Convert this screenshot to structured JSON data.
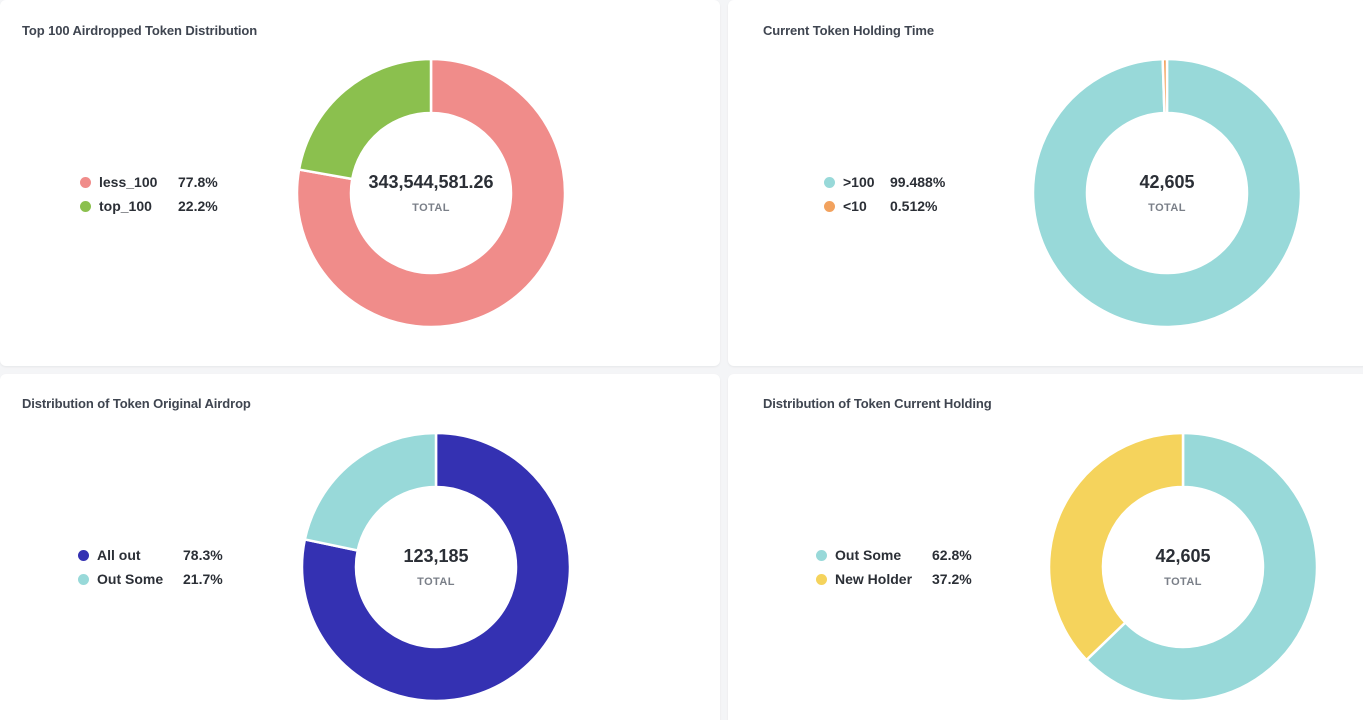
{
  "chart_data": [
    {
      "type": "pie",
      "style": "donut",
      "title": "Top 100 Airdropped Token Distribution",
      "categories": [
        "less_100",
        "top_100"
      ],
      "values": [
        77.8,
        22.2
      ],
      "value_labels": [
        "77.8%",
        "22.2%"
      ],
      "colors": [
        "#f08c8a",
        "#8bc04e"
      ],
      "total": "343,544,581.26",
      "total_label": "TOTAL",
      "legend_position": "left"
    },
    {
      "type": "pie",
      "style": "donut",
      "title": "Current Token Holding Time",
      "categories": [
        ">100",
        "<10"
      ],
      "values": [
        99.488,
        0.512
      ],
      "value_labels": [
        "99.488%",
        "0.512%"
      ],
      "colors": [
        "#98d9d9",
        "#f2a25e"
      ],
      "total": "42,605",
      "total_label": "TOTAL",
      "legend_position": "left"
    },
    {
      "type": "pie",
      "style": "donut",
      "title": "Distribution of Token Original Airdrop",
      "categories": [
        "All out",
        "Out Some"
      ],
      "values": [
        78.3,
        21.7
      ],
      "value_labels": [
        "78.3%",
        "21.7%"
      ],
      "colors": [
        "#3431b2",
        "#98d9d9"
      ],
      "total": "123,185",
      "total_label": "TOTAL",
      "legend_position": "left"
    },
    {
      "type": "pie",
      "style": "donut",
      "title": "Distribution of Token Current Holding",
      "categories": [
        "Out Some",
        "New Holder"
      ],
      "values": [
        62.8,
        37.2
      ],
      "value_labels": [
        "62.8%",
        "37.2%"
      ],
      "colors": [
        "#98d9d9",
        "#f5d35c"
      ],
      "total": "42,605",
      "total_label": "TOTAL",
      "legend_position": "left"
    }
  ]
}
